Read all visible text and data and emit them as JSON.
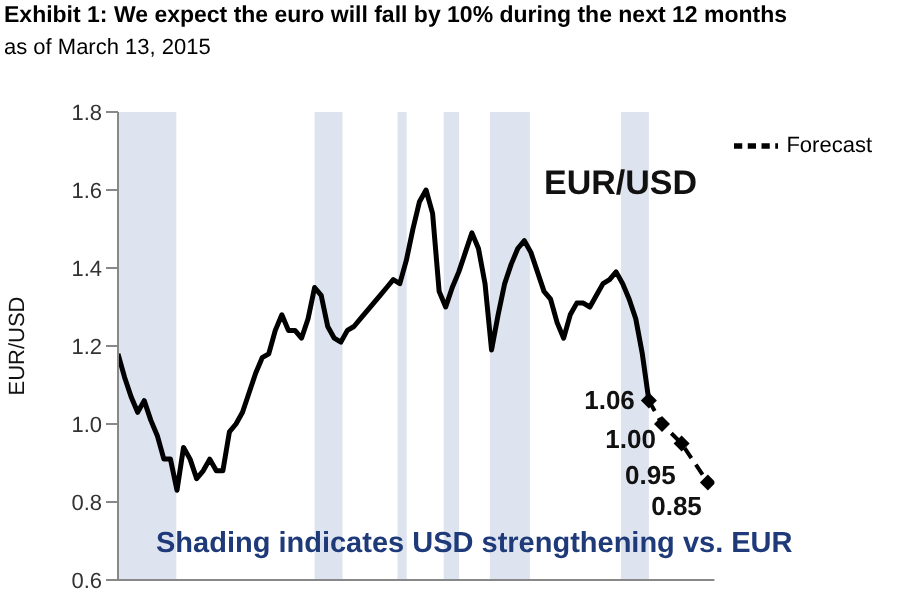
{
  "chart_data": {
    "type": "line",
    "title": "Exhibit 1:  We expect the euro will fall by 10% during the next 12 months",
    "subtitle": "as of March 13, 2015",
    "ylabel": "EUR/USD",
    "annotations": [
      "EUR/USD",
      "Shading indicates USD strengthening vs. EUR"
    ],
    "categories": [
      null,
      null,
      null,
      null,
      null,
      null,
      null,
      null,
      null,
      null,
      null,
      null,
      null,
      null,
      null,
      null,
      null,
      null,
      null,
      null,
      null,
      null,
      null,
      null,
      null,
      null,
      null,
      null,
      null,
      null,
      null,
      null,
      null,
      null,
      null,
      null,
      null,
      null,
      null,
      null,
      null,
      null,
      null,
      null,
      null,
      null,
      null,
      null,
      null,
      null,
      null,
      null,
      null,
      null,
      null,
      null,
      null,
      null,
      null,
      null,
      null,
      null,
      null,
      null,
      null,
      null,
      null,
      null,
      null,
      null,
      null,
      null,
      null,
      null,
      null,
      null,
      null,
      null,
      null,
      null,
      null,
      null,
      null,
      null,
      null,
      null,
      null,
      null,
      null,
      null,
      null,
      null
    ],
    "ylim": [
      0.6,
      1.8
    ],
    "yticks": [
      0.6,
      0.8,
      {
        "value": 1.0,
        "label": "1.0"
      },
      1.2,
      1.4,
      1.6,
      1.8
    ],
    "tick_labels": "y",
    "grid": false,
    "legend": "top right",
    "series": [
      {
        "color": "#000000",
        "marker": "none",
        "line_style": "solid",
        "values": [
          1.18,
          1.12,
          1.07,
          1.03,
          1.06,
          1.01,
          0.97,
          0.91,
          0.91,
          0.83,
          0.94,
          0.91,
          0.86,
          0.88,
          0.91,
          0.88,
          0.88,
          0.98,
          1.0,
          1.03,
          1.08,
          1.13,
          1.17,
          1.18,
          1.24,
          1.28,
          1.24,
          1.24,
          1.22,
          1.27,
          1.35,
          1.33,
          1.25,
          1.22,
          1.21,
          1.24,
          1.25,
          1.27,
          1.29,
          1.31,
          1.33,
          1.35,
          1.37,
          1.36,
          1.42,
          1.5,
          1.57,
          1.6,
          1.54,
          1.34,
          1.3,
          1.35,
          1.39,
          1.44,
          1.49,
          1.45,
          1.36,
          1.19,
          1.28,
          1.36,
          1.41,
          1.45,
          1.47,
          1.44,
          1.39,
          1.34,
          1.32,
          1.26,
          1.22,
          1.28,
          1.31,
          1.31,
          1.3,
          1.33,
          1.36,
          1.37,
          1.39,
          1.36,
          1.32,
          1.27,
          1.18,
          1.06,
          null,
          null,
          null,
          null,
          null,
          null,
          null,
          null,
          null,
          null
        ]
      },
      {
        "name": "Forecast",
        "color": "#000000",
        "marker": "diamond",
        "line_style": "dashed",
        "data_labels": true,
        "values": [
          null,
          null,
          null,
          null,
          null,
          null,
          null,
          null,
          null,
          null,
          null,
          null,
          null,
          null,
          null,
          null,
          null,
          null,
          null,
          null,
          null,
          null,
          null,
          null,
          null,
          null,
          null,
          null,
          null,
          null,
          null,
          null,
          null,
          null,
          null,
          null,
          null,
          null,
          null,
          null,
          null,
          null,
          null,
          null,
          null,
          null,
          null,
          null,
          null,
          null,
          null,
          null,
          null,
          null,
          null,
          null,
          null,
          null,
          null,
          null,
          null,
          null,
          null,
          null,
          null,
          null,
          null,
          null,
          null,
          null,
          null,
          null,
          null,
          null,
          null,
          null,
          null,
          null,
          null,
          null,
          null,
          1.06,
          null,
          1.0,
          null,
          null,
          0.95,
          null,
          null,
          null,
          0.85,
          null
        ],
        "value_labels": [
          null,
          null,
          null,
          null,
          null,
          null,
          null,
          null,
          null,
          null,
          null,
          null,
          null,
          null,
          null,
          null,
          null,
          null,
          null,
          null,
          null,
          null,
          null,
          null,
          null,
          null,
          null,
          null,
          null,
          null,
          null,
          null,
          null,
          null,
          null,
          null,
          null,
          null,
          null,
          null,
          null,
          null,
          null,
          null,
          null,
          null,
          null,
          null,
          null,
          null,
          null,
          null,
          null,
          null,
          null,
          null,
          null,
          null,
          null,
          null,
          null,
          null,
          null,
          null,
          null,
          null,
          null,
          null,
          null,
          null,
          null,
          null,
          null,
          null,
          null,
          null,
          null,
          null,
          null,
          null,
          null,
          "1.06",
          null,
          "1.00",
          null,
          null,
          "0.95",
          null,
          null,
          null,
          "0.85",
          null
        ]
      }
    ]
  }
}
